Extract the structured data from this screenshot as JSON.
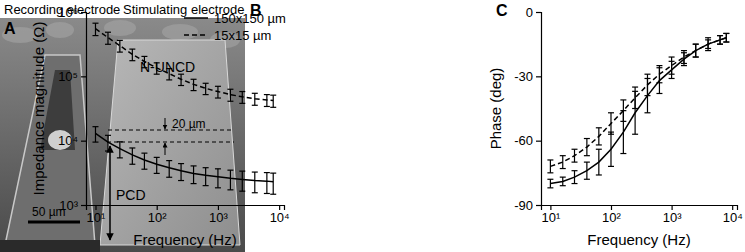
{
  "chart_data": [
    {
      "type": "line",
      "title": "B",
      "x_label": "Frequency (Hz)",
      "y_label": "Impedance magnitude (Ω)",
      "log": true,
      "legend": "top-right",
      "x": [
        10,
        16,
        25,
        40,
        63,
        100,
        160,
        250,
        400,
        630,
        1000,
        1600,
        2500,
        4000,
        6300,
        8000
      ],
      "xlim": [
        7,
        12000
      ],
      "xticks": [
        {
          "value": 10,
          "label": "10¹"
        },
        {
          "value": 100,
          "label": "10²"
        },
        {
          "value": 1000,
          "label": "10³"
        },
        {
          "value": 10000,
          "label": "10⁴"
        }
      ],
      "ylim": [
        1000,
        1000000
      ],
      "yticks": [
        {
          "value": 1000,
          "label": "10³"
        },
        {
          "value": 10000,
          "label": "10⁴"
        },
        {
          "value": 100000,
          "label": "10⁵"
        },
        {
          "value": 1000000,
          "label": "10⁶"
        }
      ],
      "series": [
        {
          "name": "150x150 µm",
          "color": "#000000",
          "line_style": "solid",
          "values": [
            13000,
            9500,
            7500,
            6000,
            5000,
            4300,
            3800,
            3400,
            3100,
            2900,
            2750,
            2600,
            2500,
            2400,
            2350,
            2300
          ],
          "errors": [
            3500,
            2600,
            2100,
            1700,
            1400,
            1200,
            1100,
            1000,
            950,
            900,
            900,
            880,
            860,
            850,
            840,
            830
          ]
        },
        {
          "name": "15x15 µm",
          "color": "#000000",
          "line_style": "dashed",
          "values": [
            550000,
            400000,
            300000,
            220000,
            170000,
            135000,
            110000,
            90000,
            75000,
            65000,
            58000,
            52000,
            48000,
            45000,
            43000,
            42000
          ],
          "errors": [
            120000,
            85000,
            62000,
            45000,
            34000,
            27000,
            22000,
            18000,
            15000,
            13000,
            12000,
            11000,
            10000,
            9500,
            9000,
            9000
          ]
        }
      ]
    },
    {
      "type": "line",
      "title": "C",
      "x_label": "Frequency (Hz)",
      "y_label": "Phase (deg)",
      "log": "x",
      "x": [
        10,
        16,
        25,
        40,
        63,
        100,
        160,
        250,
        400,
        630,
        1000,
        1600,
        2500,
        4000,
        6300,
        8000
      ],
      "xlim": [
        7,
        12000
      ],
      "xticks": [
        {
          "value": 10,
          "label": "10¹"
        },
        {
          "value": 100,
          "label": "10²"
        },
        {
          "value": 1000,
          "label": "10³"
        },
        {
          "value": 10000,
          "label": "10⁴"
        }
      ],
      "ylim": [
        -90,
        0
      ],
      "yticks": [
        -90,
        -60,
        -30,
        0
      ],
      "series": [
        {
          "color": "#000000",
          "line_style": "solid",
          "values": [
            -80,
            -79,
            -77,
            -74,
            -70,
            -64,
            -56,
            -47,
            -39,
            -32,
            -27,
            -22,
            -18,
            -15,
            -13,
            -12
          ],
          "errors": [
            2,
            2,
            3,
            4,
            6,
            8,
            10,
            10,
            8,
            6,
            4,
            3,
            3,
            2,
            2,
            2
          ]
        },
        {
          "color": "#000000",
          "line_style": "dashed",
          "values": [
            -72,
            -70,
            -67,
            -63,
            -58,
            -52,
            -46,
            -40,
            -34,
            -29,
            -25,
            -21,
            -18,
            -15,
            -13,
            -12
          ],
          "errors": [
            3,
            3,
            3,
            4,
            4,
            5,
            5,
            5,
            5,
            4,
            4,
            3,
            3,
            3,
            2,
            2
          ]
        }
      ]
    }
  ],
  "image_panel": {
    "title": "A",
    "annotations": [
      "Recording electrode",
      "Stimulating electrode",
      "N-UNCD",
      "20 µm",
      "PCD",
      "50 µm"
    ]
  }
}
